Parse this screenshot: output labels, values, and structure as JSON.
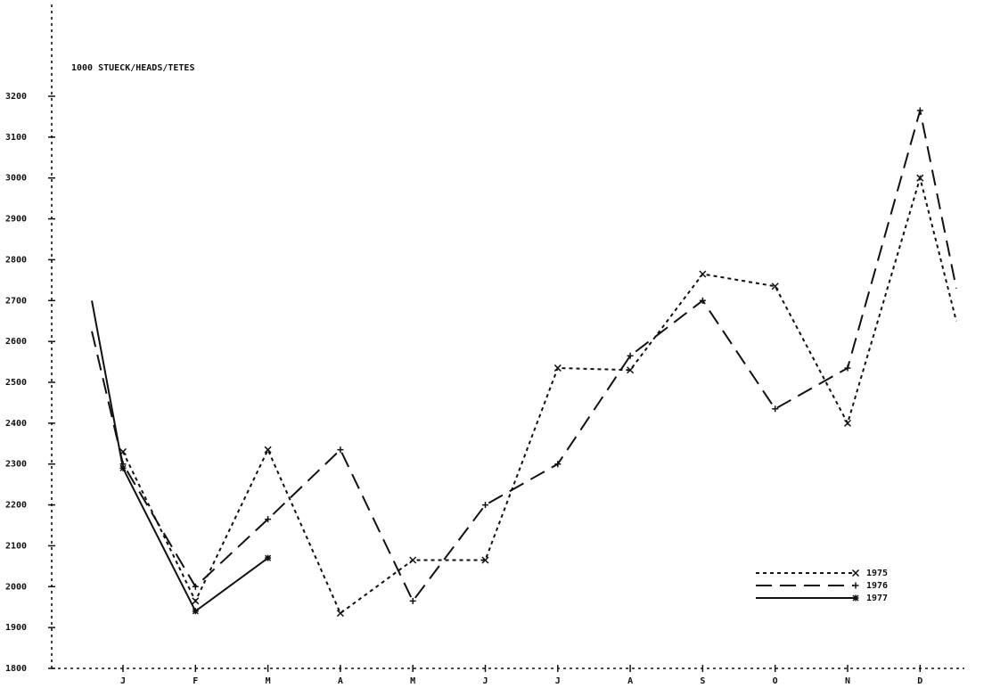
{
  "chart_data": {
    "type": "line",
    "title": "1000 STUECK/HEADS/TETES",
    "categories": [
      null,
      "J",
      "F",
      "M",
      "A",
      "M",
      "J",
      "J",
      "A",
      "S",
      "O",
      "N",
      "D",
      null
    ],
    "series": [
      {
        "name": "1975",
        "color": "#111111",
        "dash": "4,4",
        "marker": "x",
        "values": [
          null,
          2330,
          1965,
          2335,
          1935,
          2065,
          2065,
          2535,
          2530,
          2765,
          2735,
          2400,
          3000,
          2650
        ]
      },
      {
        "name": "1976",
        "color": "#111111",
        "dash": "18,9",
        "marker": "+",
        "values": [
          2625,
          2300,
          2000,
          2165,
          2335,
          1965,
          2200,
          2300,
          2565,
          2700,
          2435,
          2535,
          3165,
          2730
        ]
      },
      {
        "name": "1977",
        "color": "#111111",
        "dash": "none",
        "marker": "*",
        "values": [
          2700,
          2290,
          1940,
          2070,
          null,
          null,
          null,
          null,
          null,
          null,
          null,
          null,
          null,
          null
        ]
      }
    ],
    "ylim": [
      1800,
      3200
    ],
    "yticks": [
      1800,
      1900,
      2000,
      2100,
      2200,
      2300,
      2400,
      2500,
      2600,
      2700,
      2800,
      2900,
      3000,
      3100,
      3200
    ],
    "grid": false,
    "legend": "lower right"
  }
}
